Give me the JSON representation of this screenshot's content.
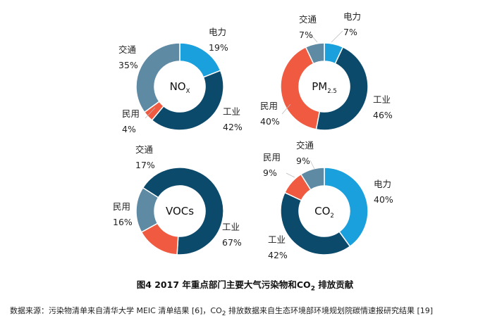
{
  "colors": {
    "电力": "#1aa0dc",
    "工业": "#0b4a6b",
    "民用": "#ef5a40",
    "交通": "#5e8aa4"
  },
  "chart_data": [
    {
      "type": "pie",
      "center_label": "NOx",
      "center_main": "NO",
      "center_sub": "X",
      "categories": [
        "电力",
        "工业",
        "民用",
        "交通"
      ],
      "values": [
        19,
        42,
        4,
        35
      ],
      "value_labels": [
        "19%",
        "42%",
        "4%",
        "35%"
      ]
    },
    {
      "type": "pie",
      "center_label": "PM2.5",
      "center_main": "PM",
      "center_sub": "2.5",
      "categories": [
        "电力",
        "工业",
        "民用",
        "交通"
      ],
      "values": [
        7,
        46,
        40,
        7
      ],
      "value_labels": [
        "7%",
        "46%",
        "40%",
        "7%"
      ]
    },
    {
      "type": "pie",
      "center_label": "VOCs",
      "center_main": "VOCs",
      "center_sub": "",
      "categories": [
        "工业",
        "民用",
        "交通"
      ],
      "values": [
        67,
        16,
        17
      ],
      "value_labels": [
        "67%",
        "16%",
        "17%"
      ]
    },
    {
      "type": "pie",
      "center_label": "CO2",
      "center_main": "CO",
      "center_sub": "2",
      "categories": [
        "电力",
        "工业",
        "民用",
        "交通"
      ],
      "values": [
        40,
        42,
        9,
        9
      ],
      "value_labels": [
        "40%",
        "42%",
        "9%",
        "9%"
      ]
    }
  ],
  "caption": {
    "before": "图4  2017 年重点部门主要大气污染物和CO",
    "sub": "2",
    "after": " 排放贡献"
  },
  "source": {
    "before": "数据来源：污染物清单来自清华大学 MEIC 清单结果 [6]，CO",
    "sub": "2",
    "after": " 排放数据来自生态环境部环境规划院碳情速报研究结果 [19]"
  }
}
